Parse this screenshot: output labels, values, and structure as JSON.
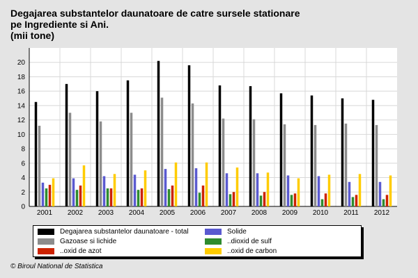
{
  "title": {
    "line1": "Degajarea substantelor daunatoare de catre sursele stationare",
    "line2": "pe Ingrediente si Ani.",
    "line3": "(mii tone)"
  },
  "footer": "© Biroul National de Statistica",
  "chart_data": {
    "type": "bar",
    "title": "Degajarea substantelor daunatoare de catre sursele stationare pe Ingrediente si Ani. (mii tone)",
    "xlabel": "",
    "ylabel": "mii tone",
    "ylim": [
      0,
      22
    ],
    "yticks": [
      "0",
      "2",
      "4",
      "6",
      "8",
      "10",
      "12",
      "14",
      "16",
      "18",
      "20"
    ],
    "grid": true,
    "legend_position": "bottom",
    "categories": [
      "2001",
      "2002",
      "2003",
      "2004",
      "2005",
      "2006",
      "2007",
      "2008",
      "2009",
      "2010",
      "2011",
      "2012"
    ],
    "series": [
      {
        "name": "Degajarea substantelor daunatoare - total",
        "color": "#000000",
        "values": [
          14.5,
          17.0,
          16.0,
          17.5,
          20.2,
          19.6,
          16.8,
          16.7,
          15.7,
          15.4,
          15.0,
          14.8
        ]
      },
      {
        "name": "Gazoase si lichide",
        "color": "#8c8c8c",
        "values": [
          11.2,
          13.0,
          11.8,
          13.0,
          15.1,
          14.3,
          12.2,
          12.1,
          11.4,
          11.3,
          11.5,
          11.3
        ]
      },
      {
        "name": "Solide",
        "color": "#5a5ad0",
        "values": [
          3.3,
          3.9,
          4.2,
          4.4,
          5.2,
          5.3,
          4.6,
          4.6,
          4.3,
          4.2,
          3.4,
          3.4
        ]
      },
      {
        "name": "..dioxid de sulf",
        "color": "#2e8b2e",
        "values": [
          2.5,
          2.3,
          2.5,
          2.3,
          2.4,
          1.9,
          1.7,
          1.5,
          1.6,
          1.0,
          1.3,
          1.0
        ]
      },
      {
        "name": "..oxid de azot",
        "color": "#cc2200",
        "values": [
          3.0,
          2.9,
          2.5,
          2.5,
          2.9,
          2.9,
          2.0,
          2.0,
          1.8,
          1.8,
          1.6,
          1.6
        ]
      },
      {
        "name": "..oxid de carbon",
        "color": "#ffcc00",
        "values": [
          3.9,
          5.7,
          4.5,
          5.0,
          6.1,
          6.1,
          5.4,
          4.7,
          3.9,
          4.4,
          4.5,
          4.3
        ]
      }
    ],
    "legend_order": [
      0,
      2,
      1,
      3,
      4,
      5
    ]
  }
}
